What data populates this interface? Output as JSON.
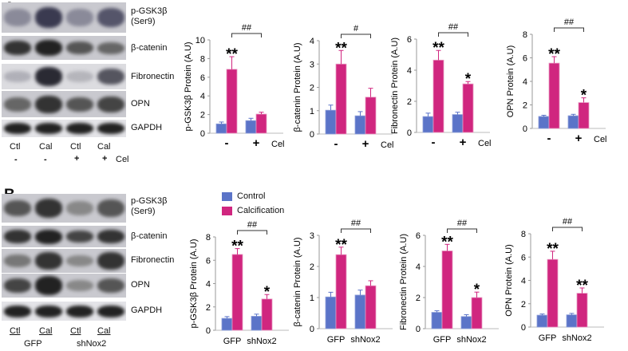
{
  "panels": {
    "a": "A",
    "b": "B"
  },
  "colors": {
    "control": "#5b74c8",
    "calcification": "#d0267f"
  },
  "legend": {
    "control": "Control",
    "calcification": "Calcification"
  },
  "blot_labels": {
    "pgsk1": "p-GSK3β",
    "pgsk2": "(Ser9)",
    "bcat": "β-catenin",
    "fn": "Fibronectin",
    "opn": "OPN",
    "gapdh": "GAPDH"
  },
  "lanes_a": {
    "l1": "Ctl",
    "l2": "Cal",
    "l3": "Ctl",
    "l4": "Cal",
    "s1": "-",
    "s2": "-",
    "s3": "+",
    "s4": "+",
    "cel": "Cel"
  },
  "lanes_b": {
    "l1": "Ctl",
    "l2": "Cal",
    "l3": "Ctl",
    "l4": "Cal",
    "g1": "GFP",
    "g2": "shNox2"
  },
  "chart_data": [
    {
      "type": "bar",
      "panel": "A",
      "ylabel": "p-GSK3β Protein (A.U)",
      "categories": [
        "-",
        "+"
      ],
      "x_suffix": "Cel",
      "ylim": [
        0,
        10
      ],
      "ticks": [
        0,
        2,
        4,
        6,
        8,
        10
      ],
      "series": [
        {
          "name": "Control",
          "values": [
            1.0,
            1.35
          ],
          "err": [
            0.2,
            0.25
          ]
        },
        {
          "name": "Calcification",
          "values": [
            6.85,
            2.05
          ],
          "err": [
            1.35,
            0.2
          ]
        }
      ],
      "sig": [
        "**",
        ""
      ],
      "bracket": "##"
    },
    {
      "type": "bar",
      "panel": "A",
      "ylabel": "β-catenin Protein (A.U)",
      "categories": [
        "-",
        "+"
      ],
      "x_suffix": "Cel",
      "ylim": [
        0,
        4
      ],
      "ticks": [
        0,
        1,
        2,
        3,
        4
      ],
      "series": [
        {
          "name": "Control",
          "values": [
            1.02,
            0.78
          ],
          "err": [
            0.22,
            0.18
          ]
        },
        {
          "name": "Calcification",
          "values": [
            3.0,
            1.58
          ],
          "err": [
            0.58,
            0.38
          ]
        }
      ],
      "sig": [
        "**",
        ""
      ],
      "bracket": "#"
    },
    {
      "type": "bar",
      "panel": "A",
      "ylabel": "Fibronectin Protein (A.U)",
      "categories": [
        "-",
        "+"
      ],
      "x_suffix": "Cel",
      "ylim": [
        0,
        6
      ],
      "ticks": [
        0,
        2,
        4,
        6
      ],
      "series": [
        {
          "name": "Control",
          "values": [
            1.02,
            1.15
          ],
          "err": [
            0.22,
            0.15
          ]
        },
        {
          "name": "Calcification",
          "values": [
            4.65,
            3.12
          ],
          "err": [
            0.62,
            0.15
          ]
        }
      ],
      "sig": [
        "**",
        "*"
      ],
      "bracket": "##"
    },
    {
      "type": "bar",
      "panel": "A",
      "ylabel": "OPN Protein (A.U)",
      "categories": [
        "-",
        "+"
      ],
      "x_suffix": "Cel",
      "ylim": [
        0,
        8
      ],
      "ticks": [
        0,
        2,
        4,
        6,
        8
      ],
      "series": [
        {
          "name": "Control",
          "values": [
            1.02,
            1.08
          ],
          "err": [
            0.1,
            0.12
          ]
        },
        {
          "name": "Calcification",
          "values": [
            5.55,
            2.2
          ],
          "err": [
            0.55,
            0.4
          ]
        }
      ],
      "sig": [
        "**",
        "*"
      ],
      "bracket": "##"
    },
    {
      "type": "bar",
      "panel": "B",
      "ylabel": "p-GSK3β Protein (A.U)",
      "categories": [
        "GFP",
        "shNox2"
      ],
      "x_suffix": "",
      "ylim": [
        0,
        8
      ],
      "ticks": [
        0,
        2,
        4,
        6,
        8
      ],
      "series": [
        {
          "name": "Control",
          "values": [
            1.02,
            1.2
          ],
          "err": [
            0.15,
            0.18
          ]
        },
        {
          "name": "Calcification",
          "values": [
            6.5,
            2.68
          ],
          "err": [
            0.5,
            0.38
          ]
        }
      ],
      "sig": [
        "**",
        "*"
      ],
      "bracket": "##"
    },
    {
      "type": "bar",
      "panel": "B",
      "ylabel": "β-catenin Protein (A.U)",
      "categories": [
        "GFP",
        "shNox2"
      ],
      "x_suffix": "",
      "ylim": [
        0,
        3
      ],
      "ticks": [
        0,
        1,
        2,
        3
      ],
      "series": [
        {
          "name": "Control",
          "values": [
            1.02,
            1.08
          ],
          "err": [
            0.15,
            0.16
          ]
        },
        {
          "name": "Calcification",
          "values": [
            2.38,
            1.38
          ],
          "err": [
            0.24,
            0.16
          ]
        }
      ],
      "sig": [
        "**",
        ""
      ],
      "bracket": "##"
    },
    {
      "type": "bar",
      "panel": "B",
      "ylabel": "Fibronectin Protein (A.U)",
      "categories": [
        "GFP",
        "shNox2"
      ],
      "x_suffix": "",
      "ylim": [
        0,
        6
      ],
      "ticks": [
        0,
        2,
        4,
        6
      ],
      "series": [
        {
          "name": "Control",
          "values": [
            1.05,
            0.78
          ],
          "err": [
            0.1,
            0.12
          ]
        },
        {
          "name": "Calcification",
          "values": [
            5.0,
            2.0
          ],
          "err": [
            0.42,
            0.35
          ]
        }
      ],
      "sig": [
        "**",
        "*"
      ],
      "bracket": "##"
    },
    {
      "type": "bar",
      "panel": "B",
      "ylabel": "OPN Protein (A.U)",
      "categories": [
        "GFP",
        "shNox2"
      ],
      "x_suffix": "",
      "ylim": [
        0,
        8
      ],
      "ticks": [
        0,
        2,
        4,
        6,
        8
      ],
      "series": [
        {
          "name": "Control",
          "values": [
            1.02,
            1.05
          ],
          "err": [
            0.1,
            0.12
          ]
        },
        {
          "name": "Calcification",
          "values": [
            5.8,
            2.9
          ],
          "err": [
            0.7,
            0.45
          ]
        }
      ],
      "sig": [
        "**",
        "**"
      ],
      "bracket": "##"
    }
  ]
}
